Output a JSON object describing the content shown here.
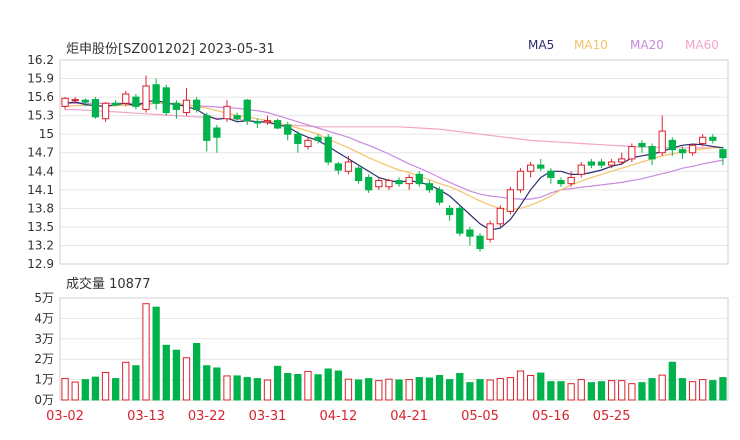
{
  "header": {
    "title": "炬申股份[SZ001202] 2023-05-31",
    "legend": [
      {
        "label": "MA5",
        "color": "#2c2c6e"
      },
      {
        "label": "MA10",
        "color": "#f5c26b"
      },
      {
        "label": "MA20",
        "color": "#c98ae0"
      },
      {
        "label": "MA60",
        "color": "#f2a6c8"
      }
    ]
  },
  "volume_header": {
    "label": "成交量 10877"
  },
  "chart_data": [
    {
      "type": "candlestick",
      "y_ticks": [
        "16.2",
        "15.9",
        "15.6",
        "15.3",
        "15",
        "14.7",
        "14.4",
        "14.1",
        "13.8",
        "13.5",
        "13.2",
        "12.9"
      ],
      "ylim": [
        12.9,
        16.2
      ],
      "colors": {
        "up": "#d9232d",
        "down": "#00b24b",
        "ma5": "#2c2c6e",
        "ma10": "#f5c26b",
        "ma20": "#c98ae0",
        "ma60": "#f2a6c8"
      },
      "candles": [
        [
          15.45,
          15.58,
          15.6,
          15.4
        ],
        [
          15.55,
          15.56,
          15.6,
          15.5
        ],
        [
          15.55,
          15.52,
          15.58,
          15.45
        ],
        [
          15.56,
          15.28,
          15.6,
          15.25
        ],
        [
          15.25,
          15.5,
          15.52,
          15.2
        ],
        [
          15.5,
          15.47,
          15.55,
          15.45
        ],
        [
          15.5,
          15.65,
          15.7,
          15.45
        ],
        [
          15.6,
          15.45,
          15.65,
          15.4
        ],
        [
          15.4,
          15.78,
          15.95,
          15.35
        ],
        [
          15.8,
          15.5,
          15.9,
          15.4
        ],
        [
          15.75,
          15.35,
          15.8,
          15.3
        ],
        [
          15.5,
          15.4,
          15.55,
          15.25
        ],
        [
          15.35,
          15.55,
          15.75,
          15.3
        ],
        [
          15.55,
          15.4,
          15.6,
          15.35
        ],
        [
          15.3,
          14.9,
          15.35,
          14.72
        ],
        [
          15.1,
          14.95,
          15.15,
          14.7
        ],
        [
          15.25,
          15.45,
          15.55,
          15.2
        ],
        [
          15.3,
          15.25,
          15.35,
          15.2
        ],
        [
          15.55,
          15.22,
          15.57,
          15.15
        ],
        [
          15.2,
          15.18,
          15.25,
          15.1
        ],
        [
          15.2,
          15.22,
          15.3,
          15.15
        ],
        [
          15.22,
          15.1,
          15.25,
          15.08
        ],
        [
          15.15,
          15.0,
          15.2,
          14.9
        ],
        [
          15.0,
          14.85,
          15.05,
          14.7
        ],
        [
          14.8,
          14.9,
          14.95,
          14.75
        ],
        [
          14.95,
          14.9,
          15.0,
          14.85
        ],
        [
          14.95,
          14.55,
          15.0,
          14.5
        ],
        [
          14.52,
          14.42,
          14.55,
          14.35
        ],
        [
          14.4,
          14.55,
          14.65,
          14.35
        ],
        [
          14.45,
          14.25,
          14.5,
          14.2
        ],
        [
          14.3,
          14.1,
          14.35,
          14.05
        ],
        [
          14.15,
          14.25,
          14.3,
          14.1
        ],
        [
          14.15,
          14.25,
          14.28,
          14.1
        ],
        [
          14.25,
          14.2,
          14.3,
          14.15
        ],
        [
          14.2,
          14.3,
          14.35,
          14.1
        ],
        [
          14.35,
          14.2,
          14.4,
          14.15
        ],
        [
          14.2,
          14.1,
          14.25,
          14.05
        ],
        [
          14.1,
          13.9,
          14.15,
          13.85
        ],
        [
          13.8,
          13.7,
          13.85,
          13.6
        ],
        [
          13.8,
          13.4,
          13.85,
          13.35
        ],
        [
          13.45,
          13.35,
          13.5,
          13.2
        ],
        [
          13.35,
          13.15,
          13.4,
          13.1
        ],
        [
          13.3,
          13.55,
          13.6,
          13.25
        ],
        [
          13.55,
          13.8,
          13.85,
          13.5
        ],
        [
          13.75,
          14.1,
          14.15,
          13.7
        ],
        [
          14.1,
          14.4,
          14.45,
          14.05
        ],
        [
          14.4,
          14.5,
          14.55,
          14.3
        ],
        [
          14.5,
          14.45,
          14.6,
          14.4
        ],
        [
          14.4,
          14.3,
          14.45,
          14.2
        ],
        [
          14.25,
          14.2,
          14.3,
          14.15
        ],
        [
          14.2,
          14.3,
          14.4,
          14.15
        ],
        [
          14.35,
          14.5,
          14.55,
          14.3
        ],
        [
          14.55,
          14.5,
          14.6,
          14.45
        ],
        [
          14.55,
          14.5,
          14.6,
          14.45
        ],
        [
          14.5,
          14.55,
          14.6,
          14.45
        ],
        [
          14.55,
          14.6,
          14.7,
          14.5
        ],
        [
          14.6,
          14.8,
          14.85,
          14.55
        ],
        [
          14.85,
          14.8,
          14.9,
          14.7
        ],
        [
          14.8,
          14.6,
          14.85,
          14.5
        ],
        [
          14.7,
          15.05,
          15.3,
          14.65
        ],
        [
          14.9,
          14.75,
          14.95,
          14.65
        ],
        [
          14.75,
          14.7,
          14.8,
          14.6
        ],
        [
          14.7,
          14.82,
          14.85,
          14.65
        ],
        [
          14.85,
          14.95,
          15.0,
          14.8
        ],
        [
          14.95,
          14.9,
          15.0,
          14.85
        ],
        [
          14.75,
          14.62,
          14.8,
          14.5
        ]
      ],
      "ma5": [
        15.5,
        15.52,
        15.48,
        15.46,
        15.45,
        15.48,
        15.5,
        15.46,
        15.52,
        15.55,
        15.5,
        15.48,
        15.45,
        15.4,
        15.3,
        15.24,
        15.26,
        15.2,
        15.22,
        15.2,
        15.2,
        15.15,
        15.12,
        15.02,
        14.95,
        14.9,
        14.8,
        14.7,
        14.6,
        14.5,
        14.4,
        14.3,
        14.25,
        14.22,
        14.25,
        14.22,
        14.18,
        14.1,
        14.0,
        13.85,
        13.7,
        13.55,
        13.45,
        13.48,
        13.62,
        13.85,
        14.1,
        14.3,
        14.4,
        14.4,
        14.35,
        14.35,
        14.38,
        14.42,
        14.48,
        14.52,
        14.62,
        14.65,
        14.68,
        14.72,
        14.78,
        14.82,
        14.84,
        14.83,
        14.8,
        14.78
      ],
      "ma10": [
        15.45,
        15.46,
        15.47,
        15.46,
        15.45,
        15.46,
        15.47,
        15.46,
        15.48,
        15.5,
        15.5,
        15.5,
        15.48,
        15.45,
        15.42,
        15.38,
        15.34,
        15.3,
        15.28,
        15.25,
        15.22,
        15.18,
        15.14,
        15.1,
        15.05,
        15.0,
        14.92,
        14.85,
        14.78,
        14.7,
        14.62,
        14.55,
        14.48,
        14.42,
        14.38,
        14.32,
        14.26,
        14.2,
        14.15,
        14.08,
        14.0,
        13.92,
        13.85,
        13.8,
        13.78,
        13.8,
        13.85,
        13.92,
        14.0,
        14.1,
        14.18,
        14.24,
        14.3,
        14.35,
        14.4,
        14.45,
        14.5,
        14.55,
        14.6,
        14.65,
        14.68,
        14.72,
        14.74,
        14.76,
        14.78,
        14.78
      ],
      "ma20": [
        15.5,
        15.5,
        15.5,
        15.5,
        15.5,
        15.5,
        15.5,
        15.5,
        15.5,
        15.5,
        15.5,
        15.48,
        15.47,
        15.46,
        15.45,
        15.44,
        15.43,
        15.42,
        15.4,
        15.38,
        15.35,
        15.3,
        15.25,
        15.2,
        15.15,
        15.1,
        15.05,
        15.0,
        14.95,
        14.88,
        14.82,
        14.75,
        14.68,
        14.6,
        14.52,
        14.45,
        14.38,
        14.3,
        14.22,
        14.15,
        14.08,
        14.03,
        14.0,
        13.98,
        13.96,
        13.95,
        13.95,
        13.98,
        14.05,
        14.1,
        14.12,
        14.14,
        14.16,
        14.18,
        14.2,
        14.22,
        14.25,
        14.28,
        14.32,
        14.36,
        14.4,
        14.45,
        14.48,
        14.52,
        14.55,
        14.58
      ],
      "ma60": [
        15.4,
        15.4,
        15.39,
        15.38,
        15.37,
        15.36,
        15.35,
        15.34,
        15.33,
        15.32,
        15.31,
        15.3,
        15.29,
        15.28,
        15.27,
        15.26,
        15.25,
        15.24,
        15.22,
        15.2,
        15.18,
        15.16,
        15.15,
        15.14,
        15.13,
        15.12,
        15.12,
        15.12,
        15.12,
        15.12,
        15.12,
        15.12,
        15.12,
        15.12,
        15.11,
        15.1,
        15.09,
        15.08,
        15.06,
        15.04,
        15.02,
        15.0,
        14.98,
        14.96,
        14.94,
        14.92,
        14.9,
        14.89,
        14.88,
        14.87,
        14.86,
        14.85,
        14.84,
        14.83,
        14.82,
        14.81,
        14.8,
        14.79,
        14.79,
        14.78,
        14.78,
        14.78,
        14.78,
        14.78,
        14.78,
        14.78
      ]
    },
    {
      "type": "bar",
      "y_ticks": [
        "5万",
        "4万",
        "3万",
        "2万",
        "1万",
        "0万"
      ],
      "ylim": [
        0,
        50000
      ],
      "x_ticks": [
        "03-02",
        "03-13",
        "03-22",
        "03-31",
        "04-12",
        "04-21",
        "05-05",
        "05-16",
        "05-25"
      ],
      "x_tick_index": [
        0,
        8,
        14,
        20,
        27,
        34,
        41,
        48,
        54
      ],
      "volumes": [
        10500,
        8800,
        10000,
        11200,
        13500,
        10500,
        18500,
        16800,
        47200,
        45500,
        26800,
        24400,
        20700,
        27700,
        16800,
        15700,
        11800,
        11800,
        11000,
        10500,
        9800,
        16500,
        13000,
        12500,
        14000,
        12400,
        15200,
        14200,
        10200,
        9800,
        10500,
        9500,
        10200,
        9800,
        10000,
        11000,
        10800,
        12000,
        10000,
        13000,
        8500,
        10000,
        9800,
        10500,
        11000,
        14200,
        12000,
        13200,
        9000,
        9000,
        8000,
        10000,
        8500,
        9000,
        9500,
        9500,
        8000,
        8500,
        10500,
        12200,
        18500,
        10500,
        9000,
        10000,
        9500,
        11000
      ]
    }
  ]
}
